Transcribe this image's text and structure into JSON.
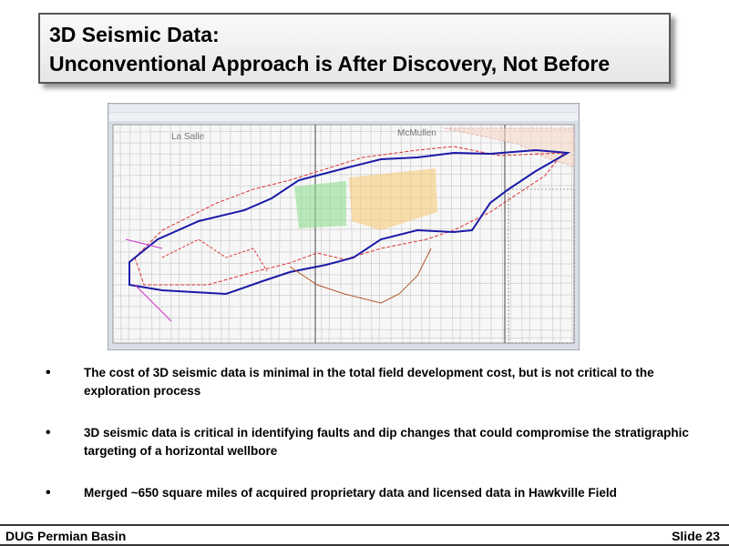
{
  "header": {
    "title_lines": [
      "3D Seismic Data:",
      "Unconventional Approach is After Discovery, Not Before"
    ]
  },
  "map": {
    "labels": [
      "La Salle",
      "McMullen"
    ]
  },
  "bullets": [
    "The cost of 3D seismic data is minimal in the total field development cost, but is not critical to the exploration process",
    "3D seismic data is critical in identifying faults and dip changes that could compromise the stratigraphic targeting  of a horizontal wellbore",
    "Merged ~650 square miles of acquired proprietary data and licensed data in Hawkville Field"
  ],
  "footer": {
    "left": "DUG Permian Basin",
    "right": "Slide 23"
  }
}
